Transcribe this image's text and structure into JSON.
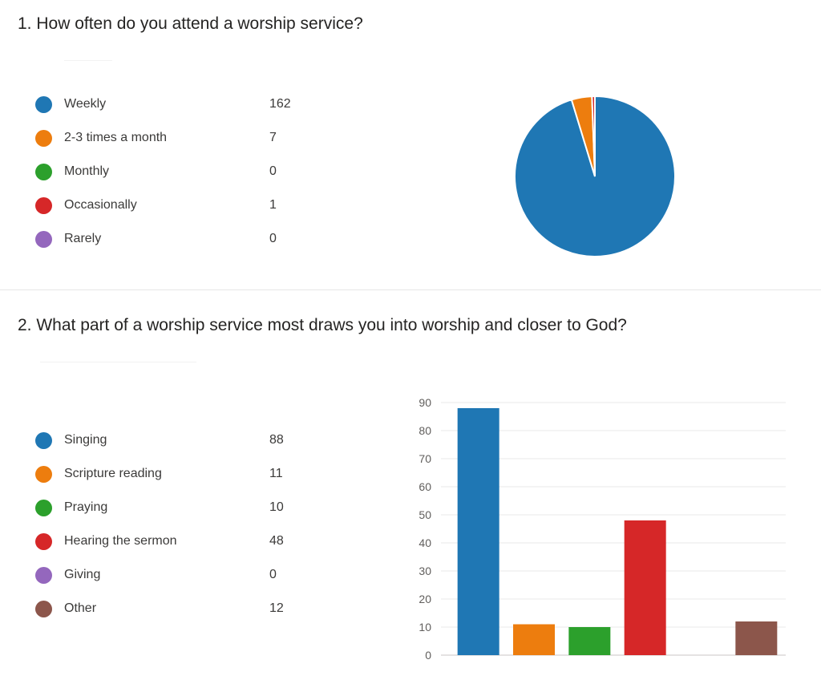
{
  "chart_data": [
    {
      "type": "pie",
      "title": "1. How often do you attend a worship service?",
      "categories": [
        "Weekly",
        "2-3 times a month",
        "Monthly",
        "Occasionally",
        "Rarely"
      ],
      "values": [
        162,
        7,
        0,
        1,
        0
      ],
      "colors": [
        "#1f77b4",
        "#ed7d0e",
        "#2ca02c",
        "#d62728",
        "#9467bd"
      ],
      "legend": "left"
    },
    {
      "type": "bar",
      "title": "2. What part of a worship service most draws you into worship and closer to God?",
      "categories": [
        "Singing",
        "Scripture reading",
        "Praying",
        "Hearing the sermon",
        "Giving",
        "Other"
      ],
      "values": [
        88,
        11,
        10,
        48,
        0,
        12
      ],
      "colors": [
        "#1f77b4",
        "#ed7d0e",
        "#2ca02c",
        "#d62728",
        "#9467bd",
        "#8c564b"
      ],
      "ylim": [
        0,
        90
      ],
      "yticks": [
        0,
        10,
        20,
        30,
        40,
        50,
        60,
        70,
        80,
        90
      ],
      "grid": true,
      "legend": "left"
    }
  ]
}
